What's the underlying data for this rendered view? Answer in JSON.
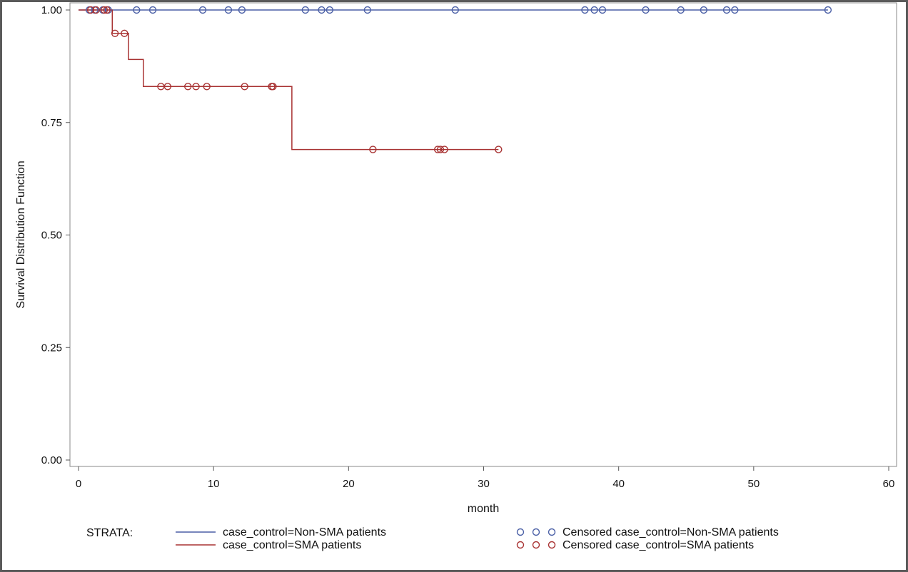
{
  "chart_data": {
    "type": "line",
    "subtype": "kaplan-meier-step",
    "xlabel": "month",
    "ylabel": "Survival Distribution Function",
    "xlim": [
      0,
      60
    ],
    "ylim": [
      0,
      1
    ],
    "x_ticks": [
      "0",
      "10",
      "20",
      "30",
      "40",
      "50",
      "60"
    ],
    "x_tick_values": [
      0,
      10,
      20,
      30,
      40,
      50,
      60
    ],
    "y_ticks": [
      "0.00",
      "0.25",
      "0.50",
      "0.75",
      "1.00"
    ],
    "y_tick_values": [
      0,
      0.25,
      0.5,
      0.75,
      1.0
    ],
    "grid": false,
    "legend": {
      "title": "STRATA:",
      "placement": "bottom",
      "entries": [
        "case_control=Non-SMA patients",
        "case_control=SMA patients",
        "Censored case_control=Non-SMA patients",
        "Censored case_control=SMA patients"
      ]
    },
    "series": [
      {
        "name": "case_control=Non-SMA patients",
        "color": "#4a5fa6",
        "steps": [
          [
            0,
            1.0
          ],
          [
            55.5,
            1.0
          ]
        ],
        "censored": [
          [
            0.8,
            1.0
          ],
          [
            1.2,
            1.0
          ],
          [
            1.8,
            1.0
          ],
          [
            2.2,
            1.0
          ],
          [
            4.3,
            1.0
          ],
          [
            5.5,
            1.0
          ],
          [
            9.2,
            1.0
          ],
          [
            11.1,
            1.0
          ],
          [
            12.1,
            1.0
          ],
          [
            16.8,
            1.0
          ],
          [
            18.0,
            1.0
          ],
          [
            18.6,
            1.0
          ],
          [
            21.4,
            1.0
          ],
          [
            27.9,
            1.0
          ],
          [
            37.5,
            1.0
          ],
          [
            38.2,
            1.0
          ],
          [
            38.8,
            1.0
          ],
          [
            42.0,
            1.0
          ],
          [
            44.6,
            1.0
          ],
          [
            46.3,
            1.0
          ],
          [
            48.0,
            1.0
          ],
          [
            48.6,
            1.0
          ],
          [
            55.5,
            1.0
          ]
        ]
      },
      {
        "name": "case_control=SMA patients",
        "color": "#a83232",
        "steps": [
          [
            0,
            1.0
          ],
          [
            2.5,
            0.948
          ],
          [
            3.7,
            0.89
          ],
          [
            4.8,
            0.83
          ],
          [
            15.8,
            0.69
          ],
          [
            31.1,
            0.69
          ]
        ],
        "censored": [
          [
            0.9,
            1.0
          ],
          [
            1.3,
            1.0
          ],
          [
            1.9,
            1.0
          ],
          [
            2.1,
            1.0
          ],
          [
            2.7,
            0.948
          ],
          [
            3.4,
            0.948
          ],
          [
            6.1,
            0.83
          ],
          [
            6.6,
            0.83
          ],
          [
            8.1,
            0.83
          ],
          [
            8.7,
            0.83
          ],
          [
            9.5,
            0.83
          ],
          [
            12.3,
            0.83
          ],
          [
            14.3,
            0.83
          ],
          [
            14.4,
            0.83
          ],
          [
            21.8,
            0.69
          ],
          [
            26.6,
            0.69
          ],
          [
            26.8,
            0.69
          ],
          [
            27.1,
            0.69
          ],
          [
            31.1,
            0.69
          ]
        ]
      }
    ]
  }
}
